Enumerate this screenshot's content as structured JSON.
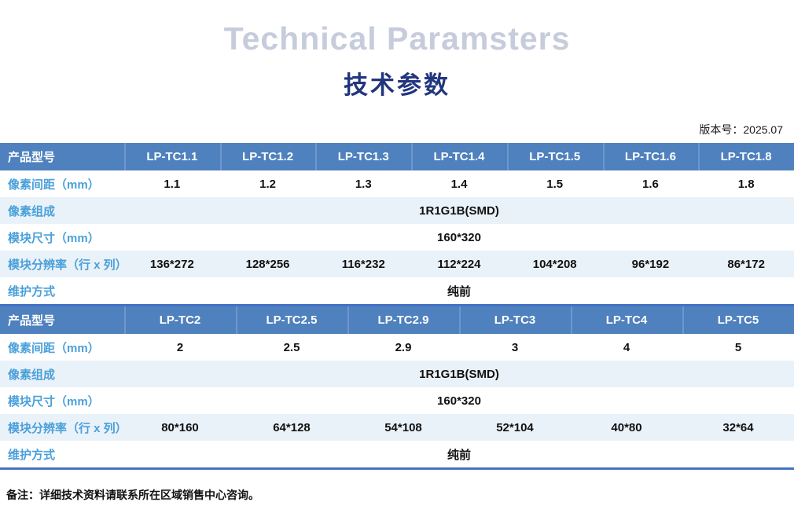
{
  "page": {
    "title_en": "Technical Paramsters",
    "title_zh": "技术参数",
    "version_label": "版本号：2025.07",
    "footnote": "备注：详细技术资料请联系所在区域销售中心咨询。"
  },
  "colors": {
    "header_bg": "#4E81BD",
    "header_separator": "#6F97CD",
    "header_text": "#FFFFFF",
    "row_alt_bg": "#EAF2F9",
    "label_text": "#4AA0DA",
    "accent_line": "#4472C4",
    "title_en_color": "#C6CCDC",
    "title_zh_color": "#22367E"
  },
  "tables": [
    {
      "header_label": "产品型号",
      "models": [
        "LP-TC1.1",
        "LP-TC1.2",
        "LP-TC1.3",
        "LP-TC1.4",
        "LP-TC1.5",
        "LP-TC1.6",
        "LP-TC1.8"
      ],
      "rows": [
        {
          "label": "像素间距（mm）",
          "type": "values",
          "values": [
            "1.1",
            "1.2",
            "1.3",
            "1.4",
            "1.5",
            "1.6",
            "1.8"
          ]
        },
        {
          "label": "像素组成",
          "type": "merged",
          "value": "1R1G1B(SMD)"
        },
        {
          "label": "模块尺寸（mm）",
          "type": "merged",
          "value": "160*320"
        },
        {
          "label": "模块分辨率（行 x 列）",
          "type": "values",
          "values": [
            "136*272",
            "128*256",
            "116*232",
            "112*224",
            "104*208",
            "96*192",
            "86*172"
          ]
        },
        {
          "label": "维护方式",
          "type": "merged",
          "value": "纯前"
        }
      ]
    },
    {
      "header_label": "产品型号",
      "models": [
        "LP-TC2",
        "LP-TC2.5",
        "LP-TC2.9",
        "LP-TC3",
        "LP-TC4",
        "LP-TC5"
      ],
      "rows": [
        {
          "label": "像素间距（mm）",
          "type": "values",
          "values": [
            "2",
            "2.5",
            "2.9",
            "3",
            "4",
            "5"
          ]
        },
        {
          "label": "像素组成",
          "type": "merged",
          "value": "1R1G1B(SMD)"
        },
        {
          "label": "模块尺寸（mm）",
          "type": "merged",
          "value": "160*320"
        },
        {
          "label": "模块分辨率（行 x 列）",
          "type": "values",
          "values": [
            "80*160",
            "64*128",
            "54*108",
            "52*104",
            "40*80",
            "32*64"
          ]
        },
        {
          "label": "维护方式",
          "type": "merged",
          "value": "纯前"
        }
      ]
    }
  ]
}
